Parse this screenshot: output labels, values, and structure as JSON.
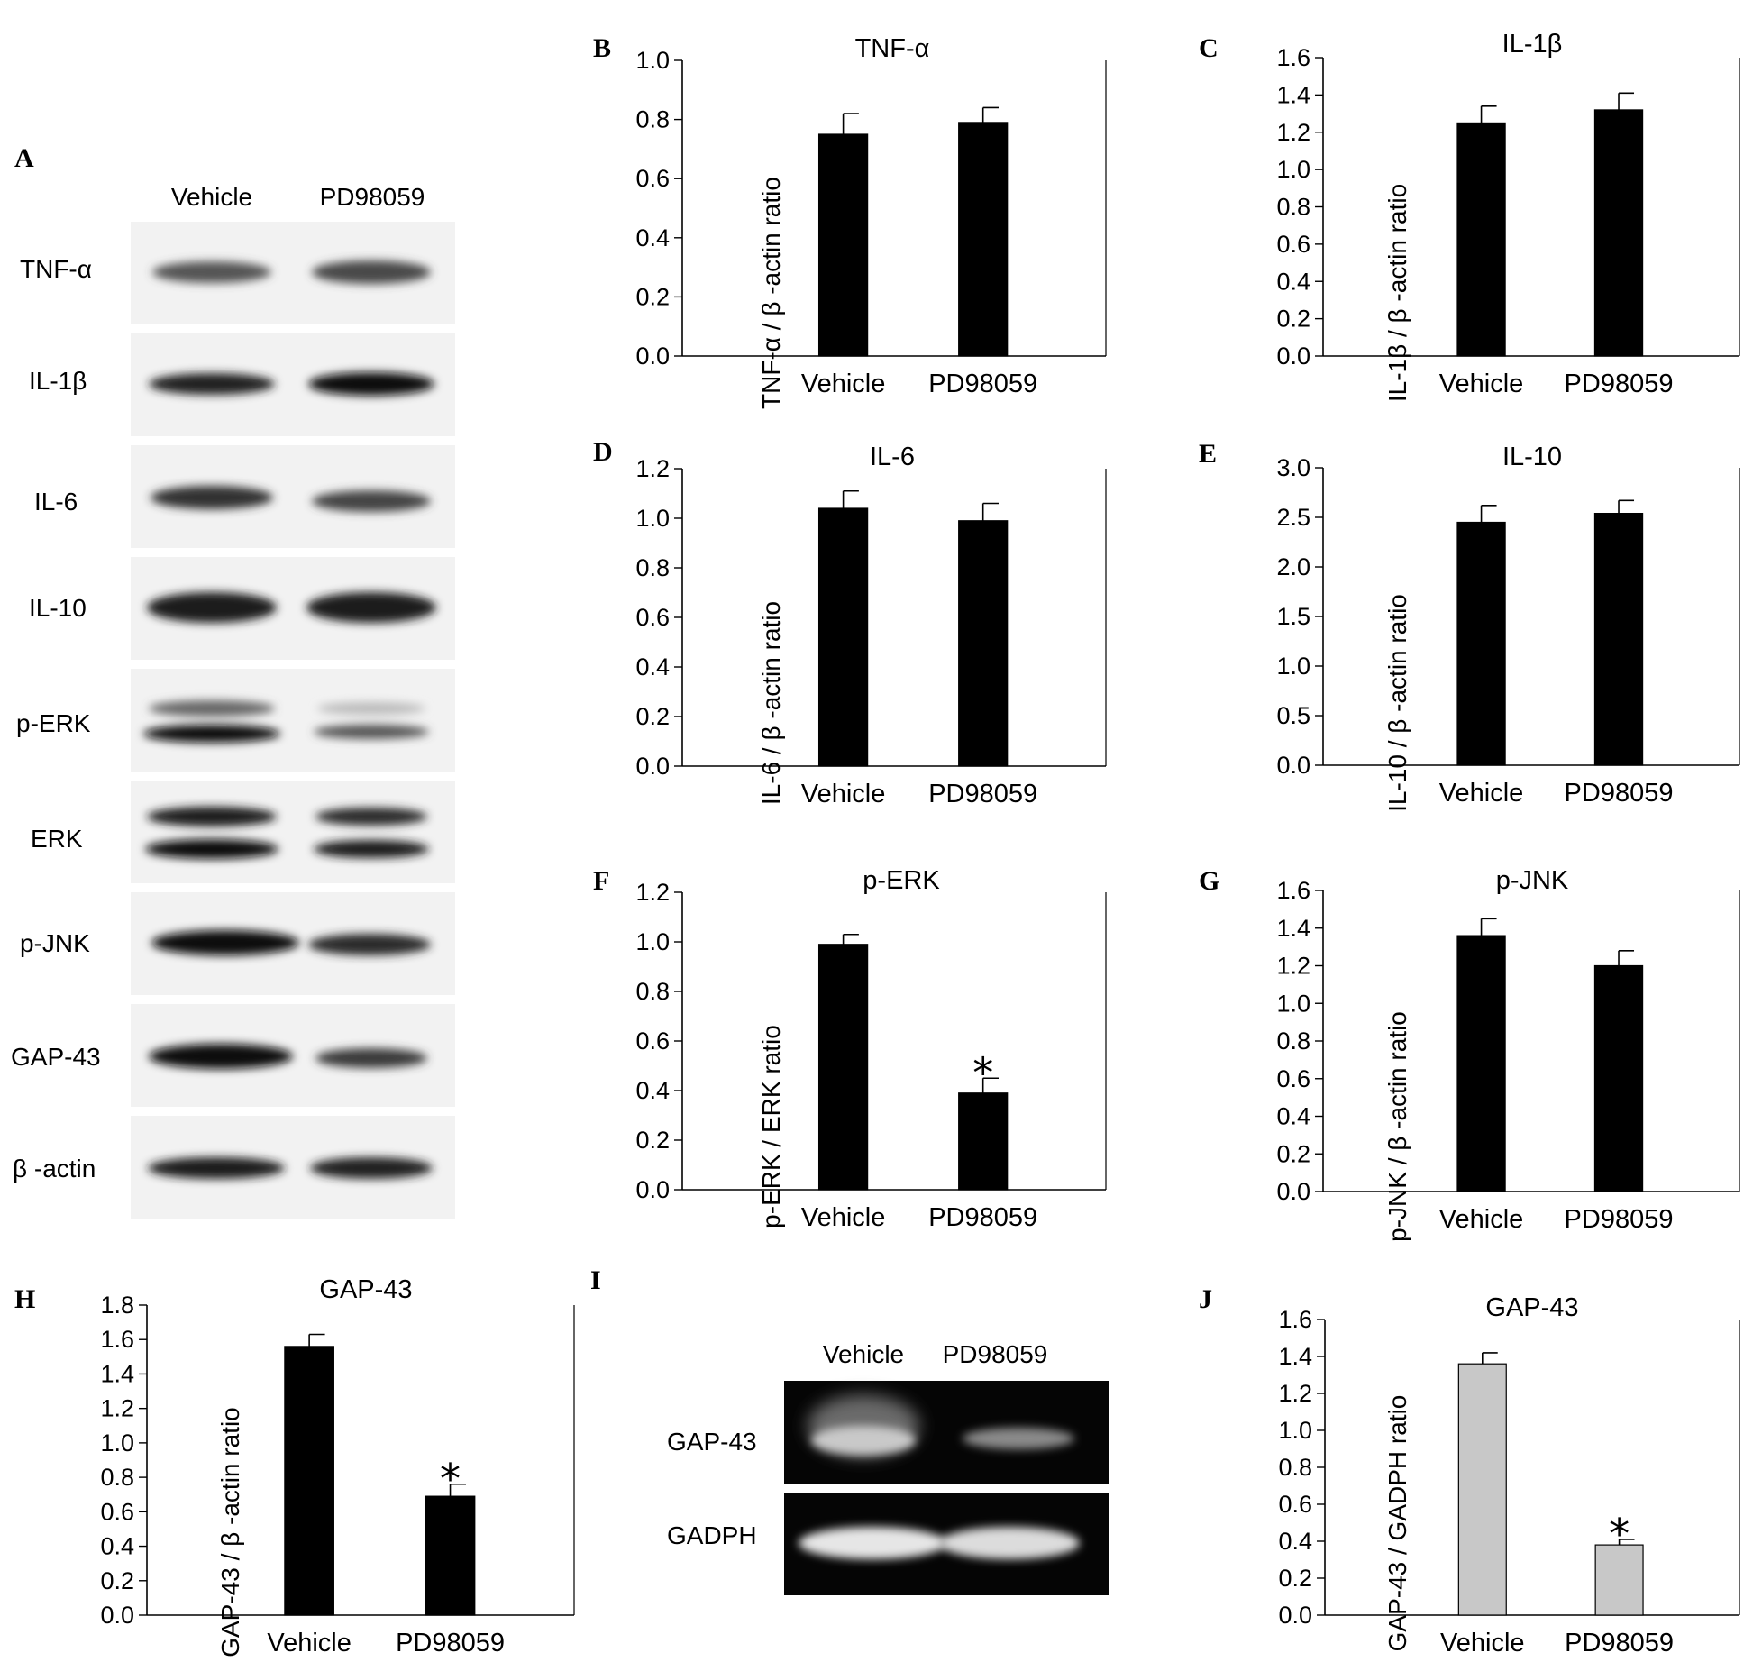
{
  "blot": {
    "panel_label": "A",
    "lanes": [
      "Vehicle",
      "PD98059"
    ],
    "rows": [
      "TNF-α",
      "IL-1β",
      "IL-6",
      "IL-10",
      "p-ERK",
      "ERK",
      "p-JNK",
      "GAP-43",
      "β -actin"
    ]
  },
  "gel": {
    "panel_label": "I",
    "lanes": [
      "Vehicle",
      "PD98059"
    ],
    "rows": [
      "GAP-43",
      "GADPH"
    ]
  },
  "significance_mark": "*",
  "chart_data": [
    {
      "panel": "B",
      "type": "bar",
      "title": "TNF-α",
      "ylabel": "TNF-α / β -actin ratio",
      "categories": [
        "Vehicle",
        "PD98059"
      ],
      "values": [
        0.75,
        0.79
      ],
      "errors": [
        0.07,
        0.05
      ],
      "ylim": [
        0,
        1.0
      ],
      "yticks": [
        "0.0",
        "0.2",
        "0.4",
        "0.6",
        "0.8",
        "1.0"
      ],
      "bar_color": "#000000",
      "significant": [
        false,
        false
      ]
    },
    {
      "panel": "C",
      "type": "bar",
      "title": "IL-1β",
      "ylabel": "IL-1β / β -actin ratio",
      "categories": [
        "Vehicle",
        "PD98059"
      ],
      "values": [
        1.25,
        1.32
      ],
      "errors": [
        0.09,
        0.09
      ],
      "ylim": [
        0,
        1.6
      ],
      "yticks": [
        "0.0",
        "0.2",
        "0.4",
        "0.6",
        "0.8",
        "1.0",
        "1.2",
        "1.4",
        "1.6"
      ],
      "bar_color": "#000000",
      "significant": [
        false,
        false
      ]
    },
    {
      "panel": "D",
      "type": "bar",
      "title": "IL-6",
      "ylabel": "IL-6 / β -actin ratio",
      "categories": [
        "Vehicle",
        "PD98059"
      ],
      "values": [
        1.04,
        0.99
      ],
      "errors": [
        0.07,
        0.07
      ],
      "ylim": [
        0,
        1.2
      ],
      "yticks": [
        "0.0",
        "0.2",
        "0.4",
        "0.6",
        "0.8",
        "1.0",
        "1.2"
      ],
      "bar_color": "#000000",
      "significant": [
        false,
        false
      ]
    },
    {
      "panel": "E",
      "type": "bar",
      "title": "IL-10",
      "ylabel": "IL-10 / β -actin ratio",
      "categories": [
        "Vehicle",
        "PD98059"
      ],
      "values": [
        2.45,
        2.54
      ],
      "errors": [
        0.17,
        0.13
      ],
      "ylim": [
        0,
        3.0
      ],
      "yticks": [
        "0.0",
        "0.5",
        "1.0",
        "1.5",
        "2.0",
        "2.5",
        "3.0"
      ],
      "bar_color": "#000000",
      "significant": [
        false,
        false
      ]
    },
    {
      "panel": "F",
      "type": "bar",
      "title": "p-ERK",
      "ylabel": "p-ERK / ERK ratio",
      "categories": [
        "Vehicle",
        "PD98059"
      ],
      "values": [
        0.99,
        0.39
      ],
      "errors": [
        0.04,
        0.06
      ],
      "ylim": [
        0,
        1.2
      ],
      "yticks": [
        "0.0",
        "0.2",
        "0.4",
        "0.6",
        "0.8",
        "1.0",
        "1.2"
      ],
      "bar_color": "#000000",
      "significant": [
        false,
        true
      ]
    },
    {
      "panel": "G",
      "type": "bar",
      "title": "p-JNK",
      "ylabel": "p-JNK / β -actin ratio",
      "categories": [
        "Vehicle",
        "PD98059"
      ],
      "values": [
        1.36,
        1.2
      ],
      "errors": [
        0.09,
        0.08
      ],
      "ylim": [
        0,
        1.6
      ],
      "yticks": [
        "0.0",
        "0.2",
        "0.4",
        "0.6",
        "0.8",
        "1.0",
        "1.2",
        "1.4",
        "1.6"
      ],
      "bar_color": "#000000",
      "significant": [
        false,
        false
      ]
    },
    {
      "panel": "H",
      "type": "bar",
      "title": "GAP-43",
      "ylabel": "GAP-43 / β -actin ratio",
      "categories": [
        "Vehicle",
        "PD98059"
      ],
      "values": [
        1.56,
        0.69
      ],
      "errors": [
        0.07,
        0.07
      ],
      "ylim": [
        0,
        1.8
      ],
      "yticks": [
        "0.0",
        "0.2",
        "0.4",
        "0.6",
        "0.8",
        "1.0",
        "1.2",
        "1.4",
        "1.6",
        "1.8"
      ],
      "bar_color": "#000000",
      "significant": [
        false,
        true
      ]
    },
    {
      "panel": "J",
      "type": "bar",
      "title": "GAP-43",
      "ylabel": "GAP-43 / GADPH ratio",
      "categories": [
        "Vehicle",
        "PD98059"
      ],
      "values": [
        1.36,
        0.38
      ],
      "errors": [
        0.06,
        0.03
      ],
      "ylim": [
        0,
        1.6
      ],
      "yticks": [
        "0.0",
        "0.2",
        "0.4",
        "0.6",
        "0.8",
        "1.0",
        "1.2",
        "1.4",
        "1.6"
      ],
      "bar_color": "#c8c8c8",
      "significant": [
        false,
        true
      ]
    }
  ]
}
